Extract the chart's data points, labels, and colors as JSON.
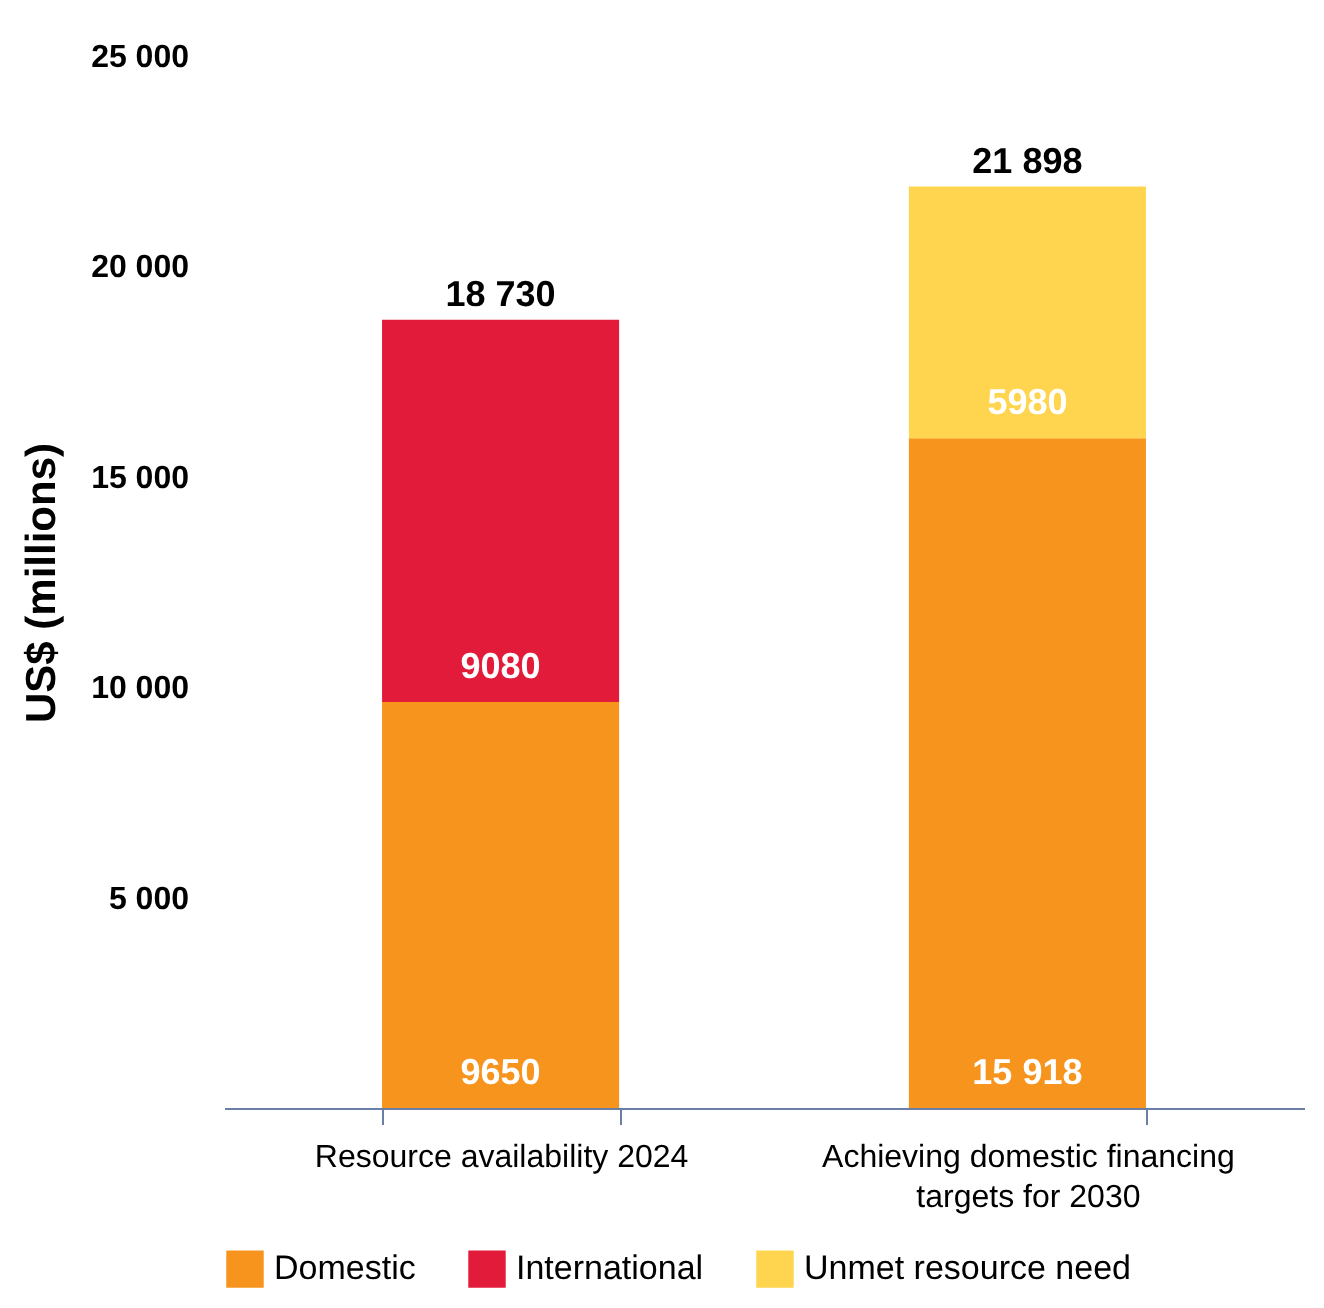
{
  "chart_data": {
    "type": "bar",
    "stacked": true,
    "ylabel": "US$ (millions)",
    "categories": [
      "Resource availability 2024",
      "Achieving domestic financing targets for 2030"
    ],
    "series": [
      {
        "name": "Domestic",
        "color": "#f7941d",
        "values": [
          9650,
          15918
        ],
        "value_labels": [
          "9650",
          "15 918"
        ]
      },
      {
        "name": "International",
        "color": "#e31b3b",
        "values": [
          9080,
          null
        ],
        "value_labels": [
          "9080",
          null
        ]
      },
      {
        "name": "Unmet resource need",
        "color": "#ffd54f",
        "values": [
          null,
          5980
        ],
        "value_labels": [
          null,
          "5980"
        ]
      }
    ],
    "totals": [
      "18 730",
      "21 898"
    ],
    "ylim": [
      0,
      25000
    ],
    "yticks": [
      {
        "value": 5000,
        "label": "5 000"
      },
      {
        "value": 10000,
        "label": "10 000"
      },
      {
        "value": 15000,
        "label": "15 000"
      },
      {
        "value": 20000,
        "label": "20 000"
      },
      {
        "value": 25000,
        "label": "25 000"
      }
    ],
    "grid": false,
    "legend": "bottom"
  }
}
